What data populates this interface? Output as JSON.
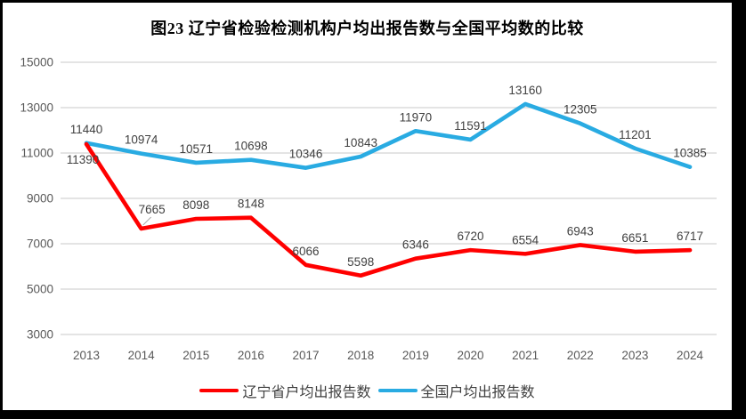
{
  "title": "图23 辽宁省检验检测机构户均出报告数与全国平均数的比较",
  "chart_data": {
    "type": "line",
    "title": "图23 辽宁省检验检测机构户均出报告数与全国平均数的比较",
    "categories": [
      "2013",
      "2014",
      "2015",
      "2016",
      "2017",
      "2018",
      "2019",
      "2020",
      "2021",
      "2022",
      "2023",
      "2024"
    ],
    "series": [
      {
        "name": "辽宁省户均出报告数",
        "color": "#FF0000",
        "values": [
          11390,
          7665,
          8098,
          8148,
          6066,
          5598,
          6346,
          6720,
          6554,
          6943,
          6651,
          6717
        ]
      },
      {
        "name": "全国户均出报告数",
        "color": "#29ABE2",
        "values": [
          11440,
          10974,
          10571,
          10698,
          10346,
          10843,
          11970,
          11591,
          13160,
          12305,
          11201,
          10385
        ]
      }
    ],
    "xlabel": "",
    "ylabel": "",
    "ylim": [
      3000,
      15000
    ],
    "y_ticks": [
      15000,
      13000,
      11000,
      9000,
      7000,
      5000,
      3000
    ],
    "grid": true,
    "gridline_color": "#DBDBDB",
    "tick_label_color": "#595959",
    "data_label_color": "#404040",
    "data_labels": true,
    "legend_position": "bottom"
  },
  "legend": {
    "items": [
      {
        "label": "辽宁省户均出报告数",
        "color": "#FF0000"
      },
      {
        "label": "全国户均出报告数",
        "color": "#29ABE2"
      }
    ]
  }
}
